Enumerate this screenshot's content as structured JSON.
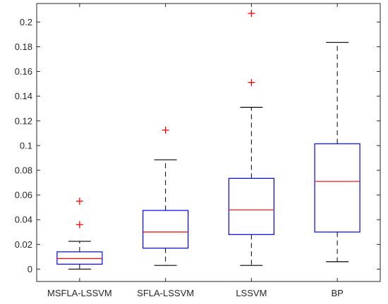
{
  "chart_data": {
    "type": "boxplot",
    "categories": [
      "MSFLA-LSSVM",
      "SFLA-LSSVM",
      "LSSVM",
      "BP"
    ],
    "boxes": [
      {
        "category": "MSFLA-LSSVM",
        "whisker_low": 0.0,
        "q1": 0.004,
        "median": 0.0085,
        "q3": 0.014,
        "whisker_high": 0.0225,
        "outliers": [
          0.036,
          0.055
        ]
      },
      {
        "category": "SFLA-LSSVM",
        "whisker_low": 0.003,
        "q1": 0.017,
        "median": 0.03,
        "q3": 0.0475,
        "whisker_high": 0.0885,
        "outliers": [
          0.1125
        ]
      },
      {
        "category": "LSSVM",
        "whisker_low": 0.003,
        "q1": 0.028,
        "median": 0.048,
        "q3": 0.0735,
        "whisker_high": 0.131,
        "outliers": [
          0.151,
          0.207
        ]
      },
      {
        "category": "BP",
        "whisker_low": 0.006,
        "q1": 0.03,
        "median": 0.071,
        "q3": 0.1015,
        "whisker_high": 0.1835,
        "outliers": []
      }
    ],
    "yticks": [
      "0",
      "0.02",
      "0.04",
      "0.06",
      "0.08",
      "0.1",
      "0.12",
      "0.14",
      "0.16",
      "0.18",
      "0.2"
    ],
    "ylim": [
      -0.01,
      0.215
    ],
    "grid": false,
    "colors": {
      "box": "#0000ff",
      "median": "#ff0000",
      "whisker": "#000000",
      "outlier": "#ff0000",
      "axis": "#262626"
    }
  }
}
